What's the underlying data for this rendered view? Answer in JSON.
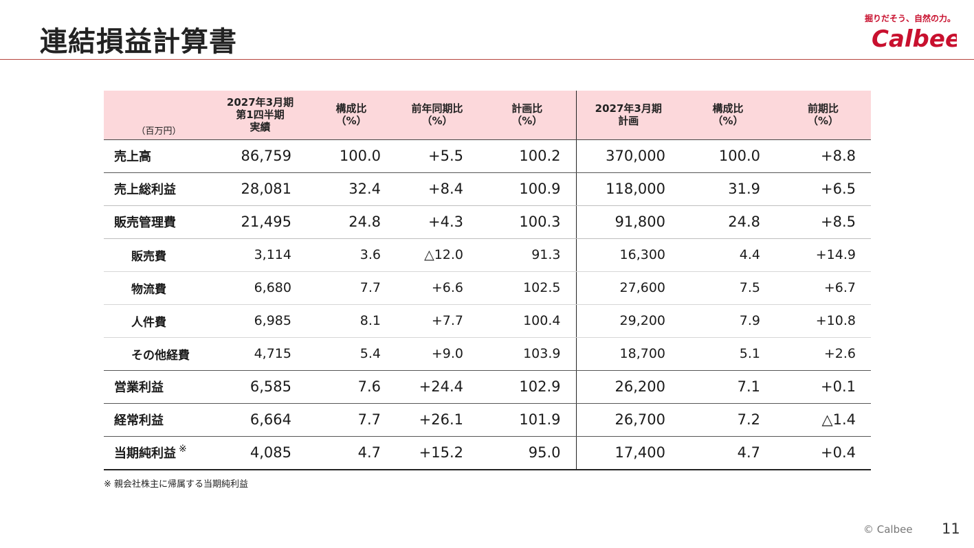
{
  "page": {
    "title": "連結損益計算書",
    "logo_tagline": "掘りだそう、自然の力。",
    "logo_text": "Calbee",
    "footnote": "※ 親会社株主に帰属する当期純利益",
    "copyright": "© Calbee",
    "page_number": "11",
    "brand_color": "#c8102e",
    "header_bg": "#fcd8db"
  },
  "table": {
    "unit": "（百万円）",
    "headers": [
      {
        "lines": [
          "2027年3月期",
          "第1四半期",
          "実績"
        ]
      },
      {
        "lines": [
          "構成比",
          "（%）"
        ]
      },
      {
        "lines": [
          "前年同期比",
          "（%）"
        ]
      },
      {
        "lines": [
          "計画比",
          "（%）"
        ]
      },
      {
        "lines": [
          "2027年3月期",
          "計画"
        ]
      },
      {
        "lines": [
          "構成比",
          "（%）"
        ]
      },
      {
        "lines": [
          "前期比",
          "（%）"
        ]
      }
    ],
    "rows": [
      {
        "label": "売上高",
        "values": [
          "86,759",
          "100.0",
          "+5.5",
          "100.2",
          "370,000",
          "100.0",
          "+8.8"
        ]
      },
      {
        "label": "売上総利益",
        "values": [
          "28,081",
          "32.4",
          "+8.4",
          "100.9",
          "118,000",
          "31.9",
          "+6.5"
        ]
      },
      {
        "label": "販売管理費",
        "values": [
          "21,495",
          "24.8",
          "+4.3",
          "100.3",
          "91,800",
          "24.8",
          "+8.5"
        ]
      },
      {
        "label": "販売費",
        "values": [
          "3,114",
          "3.6",
          "△12.0",
          "91.3",
          "16,300",
          "4.4",
          "+14.9"
        ]
      },
      {
        "label": "物流費",
        "values": [
          "6,680",
          "7.7",
          "+6.6",
          "102.5",
          "27,600",
          "7.5",
          "+6.7"
        ]
      },
      {
        "label": "人件費",
        "values": [
          "6,985",
          "8.1",
          "+7.7",
          "100.4",
          "29,200",
          "7.9",
          "+10.8"
        ]
      },
      {
        "label": "その他経費",
        "values": [
          "4,715",
          "5.4",
          "+9.0",
          "103.9",
          "18,700",
          "5.1",
          "+2.6"
        ]
      },
      {
        "label": "営業利益",
        "values": [
          "6,585",
          "7.6",
          "+24.4",
          "102.9",
          "26,200",
          "7.1",
          "+0.1"
        ]
      },
      {
        "label": "経常利益",
        "values": [
          "6,664",
          "7.7",
          "+26.1",
          "101.9",
          "26,700",
          "7.2",
          "△1.4"
        ]
      },
      {
        "label": "当期純利益",
        "mark": "※",
        "values": [
          "4,085",
          "4.7",
          "+15.2",
          "95.0",
          "17,400",
          "4.7",
          "+0.4"
        ]
      }
    ]
  }
}
